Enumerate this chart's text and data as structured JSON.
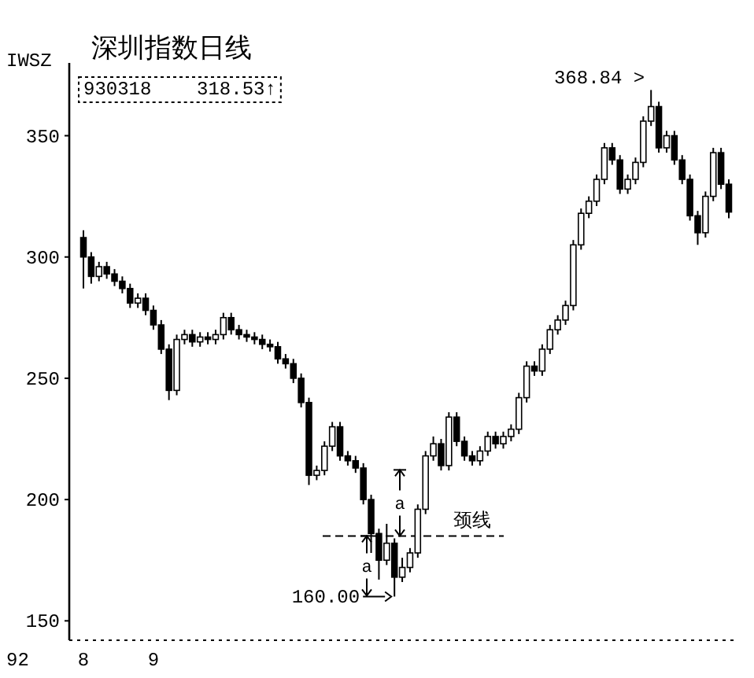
{
  "chart_data": {
    "type": "candlestick",
    "title": "深圳指数日线",
    "categories": [
      "8",
      null,
      null,
      null,
      null,
      null,
      null,
      null,
      null,
      "9",
      null,
      null,
      null,
      null,
      null,
      null,
      null,
      null,
      null,
      null,
      null,
      null,
      null,
      null,
      null,
      null,
      null,
      null,
      null,
      null,
      null,
      null,
      null,
      null,
      null,
      null,
      null,
      null,
      null,
      null,
      null,
      null,
      null,
      null,
      null,
      null,
      null,
      null,
      null,
      null,
      null,
      null,
      null,
      null,
      null,
      null,
      null,
      null,
      null,
      null,
      null,
      null,
      null,
      null,
      null,
      null,
      null,
      null,
      null,
      null,
      null,
      null,
      null,
      null,
      null,
      null,
      null,
      null,
      null,
      null,
      null,
      null,
      null,
      null
    ],
    "ohlc": [
      [
        308,
        311,
        287,
        300
      ],
      [
        300,
        302,
        289,
        292
      ],
      [
        292,
        298,
        290,
        296
      ],
      [
        296,
        298,
        291,
        293
      ],
      [
        293,
        295,
        288,
        290
      ],
      [
        290,
        292,
        285,
        287
      ],
      [
        287,
        289,
        279,
        281
      ],
      [
        281,
        285,
        279,
        283
      ],
      [
        283,
        285,
        276,
        278
      ],
      [
        278,
        280,
        270,
        272
      ],
      [
        272,
        274,
        260,
        262
      ],
      [
        262,
        264,
        241,
        245
      ],
      [
        245,
        268,
        243,
        266
      ],
      [
        266,
        270,
        264,
        268
      ],
      [
        268,
        270,
        263,
        265
      ],
      [
        265,
        269,
        263,
        267
      ],
      [
        267,
        269,
        264,
        266
      ],
      [
        266,
        270,
        264,
        268
      ],
      [
        268,
        277,
        266,
        275
      ],
      [
        275,
        277,
        268,
        270
      ],
      [
        270,
        272,
        266,
        268
      ],
      [
        268,
        270,
        265,
        267
      ],
      [
        267,
        269,
        264,
        266
      ],
      [
        266,
        268,
        262,
        264
      ],
      [
        264,
        266,
        261,
        263
      ],
      [
        263,
        265,
        256,
        258
      ],
      [
        258,
        260,
        254,
        256
      ],
      [
        256,
        258,
        248,
        250
      ],
      [
        250,
        252,
        238,
        240
      ],
      [
        240,
        242,
        206,
        210
      ],
      [
        210,
        214,
        208,
        212
      ],
      [
        212,
        224,
        210,
        222
      ],
      [
        222,
        232,
        220,
        230
      ],
      [
        230,
        232,
        216,
        218
      ],
      [
        218,
        220,
        214,
        216
      ],
      [
        216,
        218,
        211,
        213
      ],
      [
        213,
        215,
        198,
        200
      ],
      [
        200,
        202,
        178,
        186
      ],
      [
        186,
        188,
        167,
        175
      ],
      [
        175,
        190,
        173,
        182
      ],
      [
        182,
        184,
        160,
        168
      ],
      [
        168,
        176,
        166,
        172
      ],
      [
        172,
        180,
        170,
        178
      ],
      [
        178,
        198,
        176,
        196
      ],
      [
        196,
        220,
        194,
        218
      ],
      [
        218,
        226,
        216,
        223
      ],
      [
        223,
        225,
        212,
        214
      ],
      [
        214,
        236,
        212,
        234
      ],
      [
        234,
        236,
        222,
        224
      ],
      [
        224,
        226,
        216,
        218
      ],
      [
        218,
        220,
        214,
        216
      ],
      [
        216,
        222,
        214,
        220
      ],
      [
        220,
        228,
        218,
        226
      ],
      [
        226,
        228,
        221,
        223
      ],
      [
        223,
        228,
        221,
        226
      ],
      [
        226,
        231,
        224,
        229
      ],
      [
        229,
        244,
        227,
        242
      ],
      [
        242,
        257,
        240,
        255
      ],
      [
        255,
        257,
        251,
        253
      ],
      [
        253,
        264,
        251,
        262
      ],
      [
        262,
        272,
        260,
        270
      ],
      [
        270,
        276,
        268,
        274
      ],
      [
        274,
        282,
        272,
        280
      ],
      [
        280,
        307,
        278,
        305
      ],
      [
        305,
        320,
        303,
        318
      ],
      [
        318,
        325,
        316,
        323
      ],
      [
        323,
        334,
        321,
        332
      ],
      [
        332,
        347,
        330,
        345
      ],
      [
        345,
        347,
        338,
        340
      ],
      [
        340,
        342,
        326,
        328
      ],
      [
        328,
        334,
        326,
        332
      ],
      [
        332,
        341,
        330,
        339
      ],
      [
        339,
        358,
        337,
        356
      ],
      [
        356,
        368.84,
        354,
        362
      ],
      [
        362,
        364,
        343,
        345
      ],
      [
        345,
        352,
        343,
        350
      ],
      [
        350,
        352,
        338,
        340
      ],
      [
        340,
        342,
        330,
        332
      ],
      [
        332,
        334,
        315,
        317
      ],
      [
        317,
        319,
        305,
        310
      ],
      [
        310,
        327,
        308,
        325
      ],
      [
        325,
        345,
        323,
        343
      ],
      [
        343,
        345,
        328,
        330
      ],
      [
        330,
        332,
        316,
        318.53
      ]
    ],
    "ylim": [
      142,
      380
    ],
    "yticks": [
      150,
      200,
      250,
      300,
      350
    ],
    "ref_lines": [
      {
        "axis": "y",
        "value": 185,
        "label": "颈线",
        "line_style": "dashed"
      }
    ],
    "annotations": [
      "IWSZ",
      "930318    318.53↑",
      "368.84 >",
      "160.00",
      "a",
      "a",
      "92"
    ],
    "grid": false
  }
}
